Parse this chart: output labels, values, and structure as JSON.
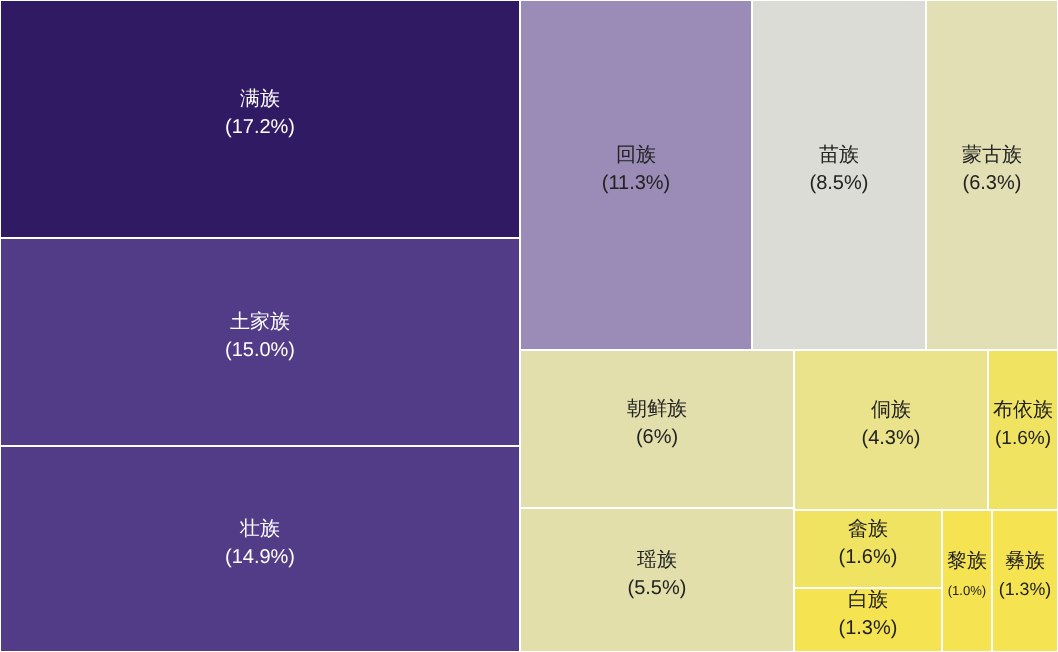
{
  "chart_data": {
    "type": "other",
    "categories": [
      "满族",
      "土家族",
      "壮族",
      "回族",
      "苗族",
      "蒙古族",
      "朝鲜族",
      "瑶族",
      "侗族",
      "布依族",
      "畲族",
      "白族",
      "黎族",
      "彝族"
    ],
    "values": [
      17.2,
      15.0,
      14.9,
      11.3,
      8.5,
      6.3,
      6,
      5.5,
      4.3,
      1.6,
      1.6,
      1.3,
      1.0,
      1.3
    ],
    "value_labels": [
      "(17.2%)",
      "(15.0%)",
      "(14.9%)",
      "(11.3%)",
      "(8.5%)",
      "(6.3%)",
      "(6%)",
      "(5.5%)",
      "(4.3%)",
      "(1.6%)",
      "(1.6%)",
      "(1.3%)",
      "(1.0%)",
      "(1.3%)"
    ],
    "colors": [
      "#311a64",
      "#523b87",
      "#533c87",
      "#9a8cb7",
      "#dcdcd6",
      "#e3dfb4",
      "#e3dfac",
      "#e3dfab",
      "#ebe28c",
      "#f1e362",
      "#f1e362",
      "#f5e352",
      "#f5e352",
      "#f5e352"
    ]
  }
}
